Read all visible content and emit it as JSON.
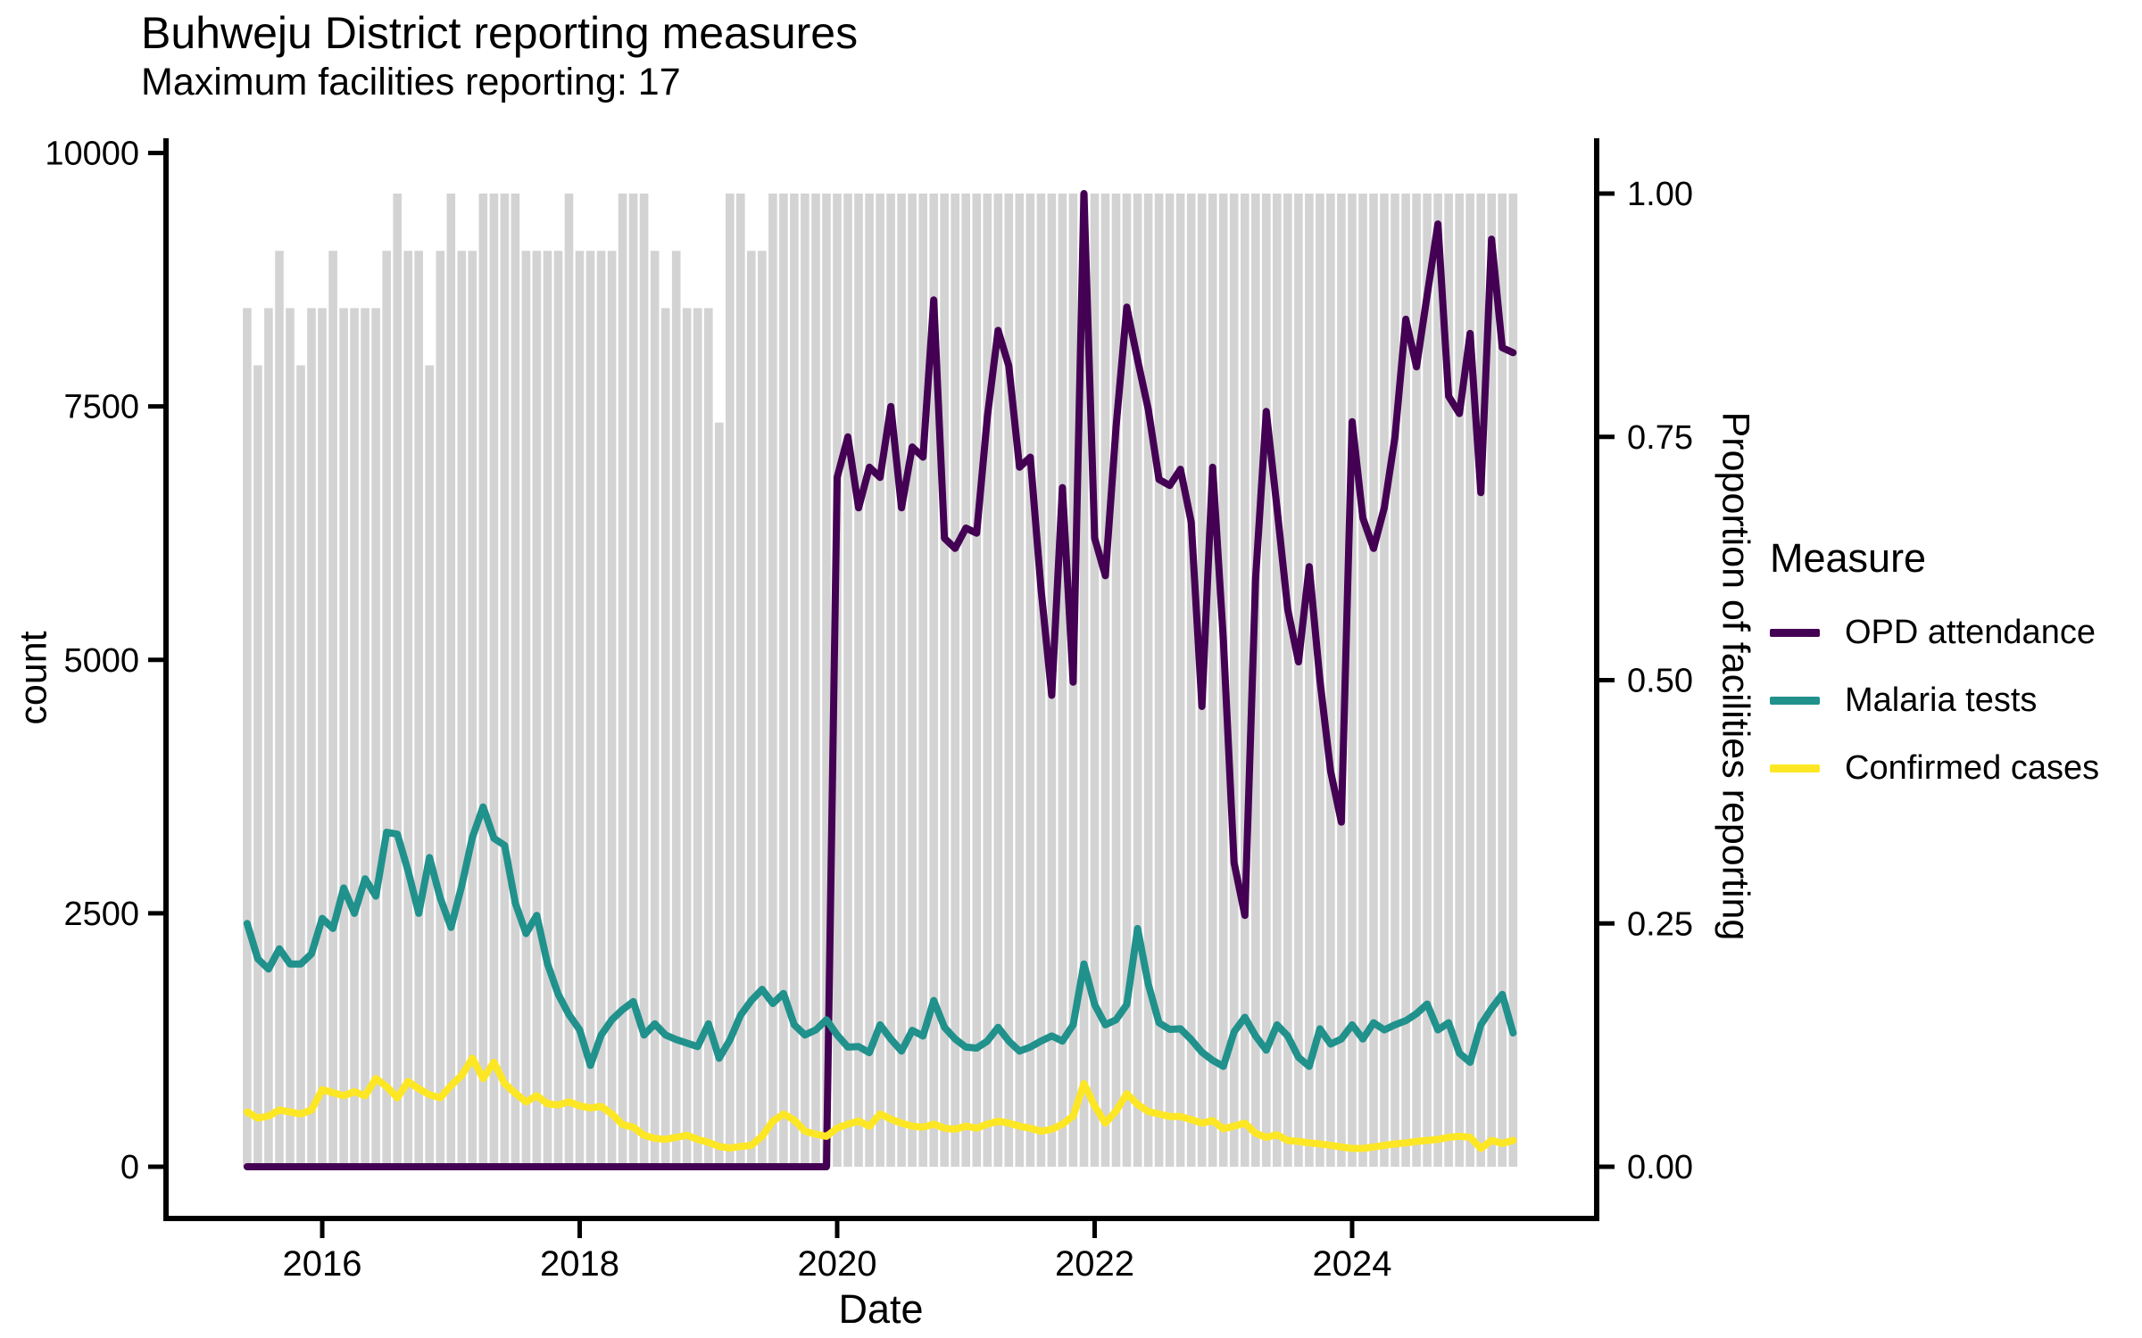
{
  "header": {
    "title": "Buhweju District reporting measures",
    "subtitle": "Maximum facilities reporting: 17"
  },
  "axes": {
    "left": {
      "title": "count",
      "ticks": [
        "0",
        "2500",
        "5000",
        "7500",
        "10000"
      ],
      "tick_values": [
        0,
        2500,
        5000,
        7500,
        10000
      ],
      "range": [
        0,
        10000
      ]
    },
    "right": {
      "title": "Proportion of facilities reporting",
      "ticks": [
        "0.00",
        "0.25",
        "0.50",
        "0.75",
        "1.00"
      ],
      "tick_values": [
        0,
        0.25,
        0.5,
        0.75,
        1.0
      ],
      "range": [
        0,
        1
      ]
    },
    "bottom": {
      "title": "Date",
      "ticks": [
        "2016",
        "2018",
        "2020",
        "2022",
        "2024"
      ],
      "tick_month_index": [
        7,
        31,
        55,
        79,
        103
      ]
    }
  },
  "legend": {
    "title": "Measure",
    "items": [
      {
        "label": "OPD attendance",
        "color": "#440154"
      },
      {
        "label": "Malaria tests",
        "color": "#21918c"
      },
      {
        "label": "Confirmed cases",
        "color": "#fde725"
      }
    ]
  },
  "colors": {
    "bars": "#d3d3d3",
    "axis": "#000000",
    "opd": "#440154",
    "malaria": "#21918c",
    "confirmed": "#fde725"
  },
  "chart_data": {
    "type": "line",
    "note_bars": "gray background bars = proportion of facilities reporting (right axis), monthly",
    "x_start": "2015-06",
    "x_end": "2025-04",
    "months_count": 119,
    "max_facilities": 17,
    "facilities_reporting": [
      15,
      14,
      15,
      16,
      15,
      14,
      15,
      15,
      16,
      15,
      15,
      15,
      15,
      16,
      17,
      16,
      16,
      14,
      16,
      17,
      16,
      16,
      17,
      17,
      17,
      17,
      16,
      16,
      16,
      16,
      17,
      16,
      16,
      16,
      16,
      17,
      17,
      17,
      16,
      15,
      16,
      15,
      15,
      15,
      13,
      17,
      17,
      16,
      16,
      17,
      17,
      17,
      17,
      17,
      17,
      17,
      17,
      17,
      17,
      17,
      17,
      17,
      17,
      17,
      17,
      17,
      17,
      17,
      17,
      17,
      17,
      17,
      17,
      17,
      17,
      17,
      17,
      17,
      17,
      17,
      17,
      17,
      17,
      17,
      17,
      17,
      17,
      17,
      17,
      17,
      17,
      17,
      17,
      17,
      17,
      17,
      17,
      17,
      17,
      17,
      17,
      17,
      17,
      17,
      17,
      17,
      17,
      17,
      17,
      17,
      17,
      17,
      17,
      17,
      17,
      17,
      17,
      17,
      17
    ],
    "series": [
      {
        "name": "OPD attendance",
        "values": [
          0,
          0,
          0,
          0,
          0,
          0,
          0,
          0,
          0,
          0,
          0,
          0,
          0,
          0,
          0,
          0,
          0,
          0,
          0,
          0,
          0,
          0,
          0,
          0,
          0,
          0,
          0,
          0,
          0,
          0,
          0,
          0,
          0,
          0,
          0,
          0,
          0,
          0,
          0,
          0,
          0,
          0,
          0,
          0,
          0,
          0,
          0,
          0,
          0,
          0,
          0,
          0,
          0,
          0,
          0,
          6800,
          7200,
          6500,
          6900,
          6800,
          7500,
          6500,
          7100,
          7000,
          8550,
          6200,
          6100,
          6300,
          6250,
          7400,
          8250,
          7900,
          6900,
          7000,
          5700,
          4650,
          6700,
          4780,
          9600,
          6200,
          5830,
          7300,
          8480,
          7960,
          7470,
          6780,
          6720,
          6880,
          6360,
          4540,
          6900,
          5200,
          3000,
          2480,
          5800,
          7450,
          6500,
          5500,
          4980,
          5920,
          4800,
          3900,
          3400,
          7350,
          6400,
          6100,
          6500,
          7200,
          8360,
          7890,
          8600,
          9300,
          7600,
          7430,
          8220,
          6650,
          9150,
          8080,
          8030
        ]
      },
      {
        "name": "Malaria tests",
        "values": [
          2400,
          2050,
          1950,
          2150,
          2000,
          2000,
          2100,
          2450,
          2350,
          2750,
          2500,
          2840,
          2670,
          3300,
          3280,
          2920,
          2500,
          3050,
          2650,
          2360,
          2770,
          3250,
          3550,
          3240,
          3170,
          2600,
          2300,
          2480,
          2000,
          1700,
          1500,
          1350,
          1000,
          1300,
          1450,
          1550,
          1630,
          1300,
          1410,
          1300,
          1255,
          1220,
          1185,
          1410,
          1070,
          1250,
          1495,
          1640,
          1750,
          1610,
          1710,
          1400,
          1300,
          1350,
          1450,
          1300,
          1180,
          1185,
          1125,
          1400,
          1260,
          1140,
          1345,
          1290,
          1640,
          1375,
          1260,
          1180,
          1170,
          1240,
          1375,
          1240,
          1140,
          1180,
          1240,
          1290,
          1240,
          1400,
          2000,
          1600,
          1400,
          1450,
          1600,
          2350,
          1800,
          1420,
          1355,
          1360,
          1255,
          1130,
          1050,
          990,
          1330,
          1475,
          1290,
          1150,
          1400,
          1290,
          1080,
          990,
          1360,
          1210,
          1260,
          1400,
          1260,
          1420,
          1350,
          1400,
          1440,
          1510,
          1605,
          1350,
          1420,
          1120,
          1030,
          1400,
          1560,
          1700,
          1320
        ]
      },
      {
        "name": "Confirmed cases",
        "values": [
          540,
          480,
          500,
          560,
          540,
          520,
          560,
          760,
          730,
          700,
          740,
          700,
          870,
          790,
          680,
          840,
          770,
          710,
          680,
          800,
          900,
          1070,
          870,
          1030,
          820,
          725,
          640,
          700,
          620,
          610,
          640,
          600,
          580,
          595,
          520,
          415,
          390,
          310,
          280,
          270,
          290,
          310,
          270,
          240,
          200,
          185,
          200,
          210,
          300,
          450,
          520,
          460,
          350,
          320,
          300,
          380,
          420,
          450,
          400,
          520,
          470,
          430,
          400,
          390,
          420,
          380,
          370,
          400,
          380,
          420,
          450,
          430,
          400,
          380,
          350,
          370,
          420,
          500,
          820,
          600,
          430,
          550,
          720,
          615,
          545,
          520,
          495,
          495,
          465,
          430,
          455,
          375,
          400,
          430,
          330,
          290,
          315,
          260,
          250,
          235,
          225,
          210,
          195,
          180,
          180,
          195,
          210,
          225,
          235,
          250,
          260,
          270,
          290,
          300,
          290,
          180,
          260,
          230,
          260
        ]
      }
    ],
    "ylim": [
      0,
      10000
    ],
    "y2lim": [
      0,
      1
    ],
    "grid": false,
    "legend_position": "right"
  }
}
